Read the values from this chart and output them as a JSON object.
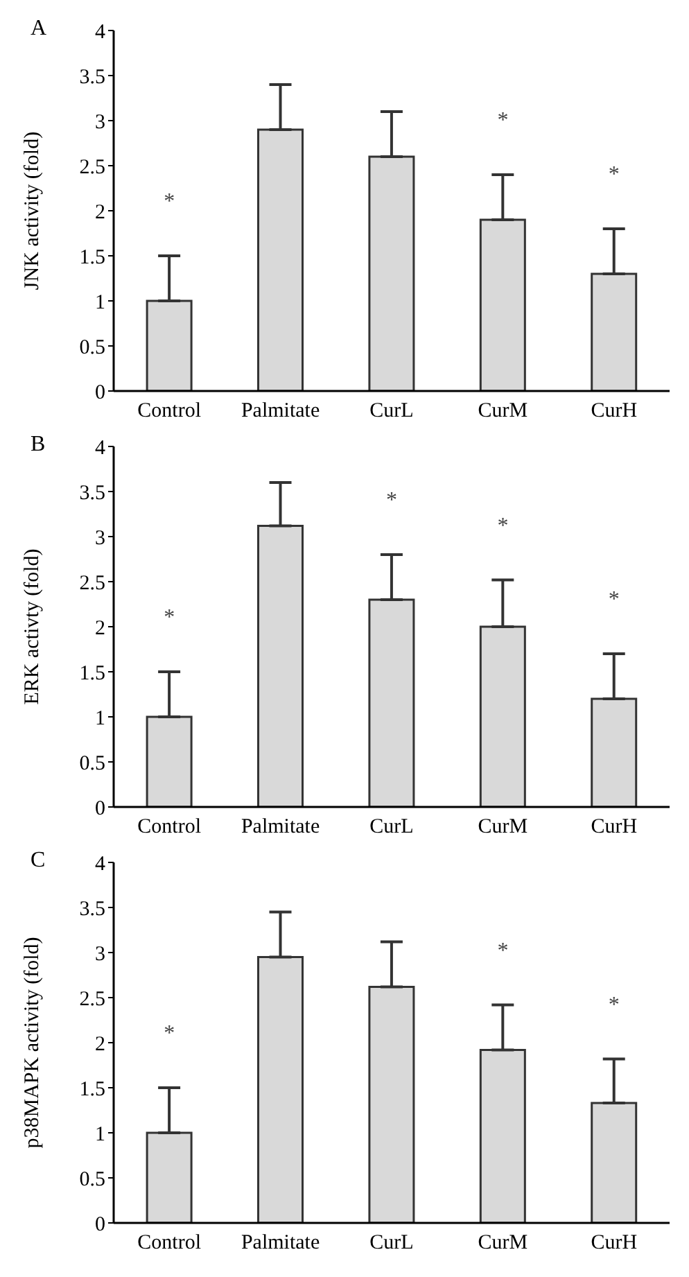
{
  "chart_data": [
    {
      "type": "bar",
      "title": "A",
      "ylabel": "JNK activity (fold)",
      "categories": [
        "Control",
        "Palmitate",
        "CurL",
        "CurM",
        "CurH"
      ],
      "values": [
        1.0,
        2.9,
        2.6,
        1.9,
        1.3
      ],
      "errors": [
        [
          1.0,
          1.5
        ],
        [
          2.9,
          3.4
        ],
        [
          2.6,
          3.1
        ],
        [
          1.9,
          2.4
        ],
        [
          1.3,
          1.8
        ]
      ],
      "color": "#d9d9d9",
      "ylim": [
        0,
        4
      ],
      "yticks": [
        0,
        0.5,
        1,
        1.5,
        2,
        2.5,
        3,
        3.5,
        4
      ],
      "annotations": [
        {
          "text": "*",
          "x": "Control",
          "y": 1.5
        },
        {
          "text": "*",
          "x": "CurM",
          "y": 2.4
        },
        {
          "text": "*",
          "x": "CurH",
          "y": 1.8
        }
      ]
    },
    {
      "type": "bar",
      "title": "B",
      "ylabel": "ERK activty (fold)",
      "categories": [
        "Control",
        "Palmitate",
        "CurL",
        "CurM",
        "CurH"
      ],
      "values": [
        1.0,
        3.12,
        2.3,
        2.0,
        1.2
      ],
      "errors": [
        [
          1.0,
          1.5
        ],
        [
          3.12,
          3.6
        ],
        [
          2.3,
          2.8
        ],
        [
          2.0,
          2.52
        ],
        [
          1.2,
          1.7
        ]
      ],
      "color": "#d9d9d9",
      "ylim": [
        0,
        4
      ],
      "yticks": [
        0,
        0.5,
        1,
        1.5,
        2,
        2.5,
        3,
        3.5,
        4
      ],
      "annotations": [
        {
          "text": "*",
          "x": "Control",
          "y": 1.5
        },
        {
          "text": "*",
          "x": "CurL",
          "y": 2.8
        },
        {
          "text": "*",
          "x": "CurM",
          "y": 2.52
        },
        {
          "text": "*",
          "x": "CurH",
          "y": 1.7
        }
      ]
    },
    {
      "type": "bar",
      "title": "C",
      "ylabel": "p38MAPK activity (fold)",
      "categories": [
        "Control",
        "Palmitate",
        "CurL",
        "CurM",
        "CurH"
      ],
      "values": [
        1.0,
        2.95,
        2.62,
        1.92,
        1.33
      ],
      "errors": [
        [
          1.0,
          1.5
        ],
        [
          2.95,
          3.45
        ],
        [
          2.62,
          3.12
        ],
        [
          1.92,
          2.42
        ],
        [
          1.33,
          1.82
        ]
      ],
      "color": "#d9d9d9",
      "ylim": [
        0,
        4
      ],
      "yticks": [
        0,
        0.5,
        1,
        1.5,
        2,
        2.5,
        3,
        3.5,
        4
      ],
      "annotations": [
        {
          "text": "*",
          "x": "Control",
          "y": 1.5
        },
        {
          "text": "*",
          "x": "CurM",
          "y": 2.42
        },
        {
          "text": "*",
          "x": "CurH",
          "y": 1.82
        }
      ]
    }
  ]
}
